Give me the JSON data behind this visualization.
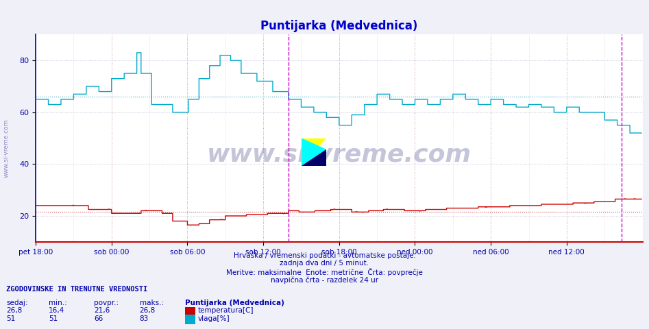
{
  "title": "Puntijarka (Medvednica)",
  "title_color": "#0000cc",
  "title_fontsize": 12,
  "bg_color": "#f0f0f8",
  "plot_bg_color": "#ffffff",
  "ylim": [
    10,
    90
  ],
  "yticks": [
    20,
    40,
    60,
    80
  ],
  "xtick_labels": [
    "pet 18:00",
    "sob 00:00",
    "sob 06:00",
    "sob 12:00",
    "sob 18:00",
    "ned 00:00",
    "ned 06:00",
    "ned 12:00"
  ],
  "n_points": 576,
  "temp_color": "#cc0000",
  "humid_color": "#00aacc",
  "avg_temp_color": "#cc4444",
  "avg_humid_color": "#44aacc",
  "grid_v_color": "#cc8888",
  "grid_h_color": "#aaaacc",
  "vline_color": "#cc00cc",
  "avg_temp": 21.6,
  "avg_humid": 66.0,
  "footer_line1": "Hrvaška / vremenski podatki - avtomatske postaje.",
  "footer_line2": "zadnja dva dni / 5 minut.",
  "footer_line3": "Meritve: maksimalne  Enote: metrične  Črta: povprečje",
  "footer_line4": "navpična črta - razdelek 24 ur",
  "footer_color": "#0000aa",
  "stats_header": "ZGODOVINSKE IN TRENUTNE VREDNOSTI",
  "stats_sedaj": "sedaj:",
  "stats_min": "min.:",
  "stats_povpr": "povpr.:",
  "stats_maks": "maks.:",
  "stats_station": "Puntijarka (Medvednica)",
  "temp_sedaj": "26,8",
  "temp_min": "16,4",
  "temp_povpr": "21,6",
  "temp_maks": "26,8",
  "humid_sedaj": "51",
  "humid_min": "51",
  "humid_povpr": "66",
  "humid_maks": "83",
  "temp_label": "temperatura[C]",
  "humid_label": "vlaga[%]",
  "watermark": "www.si-vreme.com",
  "watermark_color": "#4444aa",
  "now_vline_pos": 240,
  "end_vline_pos": 556,
  "logo_yellow": "#ffff00",
  "logo_cyan": "#00ffff",
  "logo_dark": "#000066"
}
